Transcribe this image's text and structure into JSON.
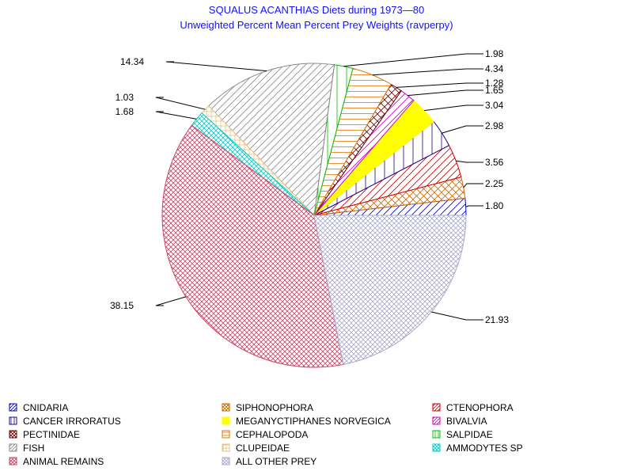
{
  "chart_data": {
    "type": "pie",
    "title": "SQUALUS ACANTHIAS Diets during 1973—80",
    "subtitle": "Unweighted Percent Mean Percent Prey  Weights (ravperpy)",
    "slices": [
      {
        "name": "CNIDARIA",
        "value": 1.8,
        "label": "1.80",
        "color": "#0000cc",
        "pattern": "diag-up"
      },
      {
        "name": "SIPHONOPHORA",
        "value": 2.25,
        "label": "2.25",
        "color": "#cc6600",
        "pattern": "cross-diag"
      },
      {
        "name": "CTENOPHORA",
        "value": 3.56,
        "label": "3.56",
        "color": "#cc0000",
        "pattern": "diag-up"
      },
      {
        "name": "CANCER IRRORATUS",
        "value": 2.98,
        "label": "2.98",
        "color": "#220088",
        "pattern": "vertical"
      },
      {
        "name": "MEGANYCTIPHANES NORVEGICA",
        "value": 3.04,
        "label": "3.04",
        "color": "#ffff00",
        "pattern": "solid"
      },
      {
        "name": "BIVALVIA",
        "value": 1.65,
        "label": "1.65",
        "color": "#cc00cc",
        "pattern": "diag-up"
      },
      {
        "name": "PECTINIDAE",
        "value": 1.28,
        "label": "1.28",
        "color": "#660000",
        "pattern": "cross-diag"
      },
      {
        "name": "CEPHALOPODA",
        "value": 4.34,
        "label": "4.34",
        "color": "#dd7700",
        "pattern": "horizontal"
      },
      {
        "name": "SALPIDAE",
        "value": 1.98,
        "label": "1.98",
        "color": "#00bb00",
        "pattern": "vertical"
      },
      {
        "name": "FISH",
        "value": 14.34,
        "label": "14.34",
        "color": "#888888",
        "pattern": "diag-up"
      },
      {
        "name": "CLUPEIDAE",
        "value": 1.03,
        "label": "1.03",
        "color": "#e8c080",
        "pattern": "cross-grid"
      },
      {
        "name": "AMMODYTES SP",
        "value": 1.68,
        "label": "1.68",
        "color": "#00cccc",
        "pattern": "cross-diag"
      },
      {
        "name": "ANIMAL REMAINS",
        "value": 38.15,
        "label": "38.15",
        "color": "#cc4466",
        "pattern": "cross-diag"
      },
      {
        "name": "ALL OTHER PREY",
        "value": 21.93,
        "label": "21.93",
        "color": "#aaaacc",
        "pattern": "cross-diag"
      }
    ],
    "legend_order": [
      "CNIDARIA",
      "SIPHONOPHORA",
      "CTENOPHORA",
      "CANCER IRRORATUS",
      "MEGANYCTIPHANES NORVEGICA",
      "BIVALVIA",
      "PECTINIDAE",
      "CEPHALOPODA",
      "SALPIDAE",
      "FISH",
      "CLUPEIDAE",
      "AMMODYTES SP",
      "ANIMAL REMAINS",
      "ALL OTHER PREY"
    ],
    "legend_placement": "bottom",
    "start_direction": "3 o'clock",
    "direction": "counterclockwise"
  }
}
